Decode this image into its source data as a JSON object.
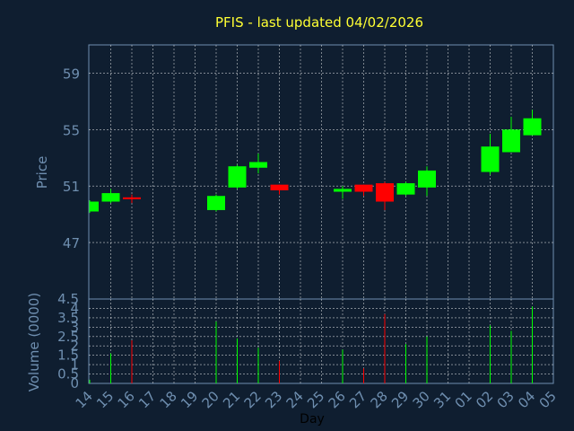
{
  "chart_data": {
    "type": "candlestick",
    "title": "PFIS - last updated 04/02/2026",
    "xlabel": "Day",
    "ylabel": "Price",
    "volume_label": "Volume (0000)",
    "categories": [
      "14",
      "15",
      "16",
      "17",
      "18",
      "19",
      "20",
      "21",
      "22",
      "23",
      "24",
      "25",
      "26",
      "27",
      "28",
      "29",
      "30",
      "31",
      "01",
      "02",
      "03",
      "04",
      "05"
    ],
    "price_ylim": [
      43,
      61
    ],
    "price_ticks": [
      "47",
      "51",
      "55",
      "59"
    ],
    "price_tick_values": [
      47,
      51,
      55,
      59
    ],
    "volume_ylim": [
      0,
      4.5
    ],
    "volume_ticks": [
      "0",
      "0.5",
      "1",
      "1.5",
      "2",
      "2.5",
      "3",
      "3.5",
      "4",
      "4.5"
    ],
    "volume_tick_values": [
      0,
      0.5,
      1,
      1.5,
      2,
      2.5,
      3,
      3.5,
      4,
      4.5
    ],
    "grid": true,
    "colors": {
      "up": "#00ff00",
      "down": "#ff0000",
      "grid": "#ffffff",
      "axis": "#6f8fb0",
      "title": "#ffff33",
      "background": "#0f1e30"
    },
    "candles": [
      {
        "x": "14",
        "open": 49.2,
        "close": 49.9,
        "high": 50.0,
        "low": 49.1,
        "volume": 0.2
      },
      {
        "x": "15",
        "open": 49.9,
        "close": 50.5,
        "high": 50.8,
        "low": 49.8,
        "volume": 1.6
      },
      {
        "x": "16",
        "open": 50.2,
        "close": 50.1,
        "high": 50.4,
        "low": 49.8,
        "volume": 2.3
      },
      {
        "x": "20",
        "open": 49.3,
        "close": 50.3,
        "high": 50.4,
        "low": 49.2,
        "volume": 3.3
      },
      {
        "x": "21",
        "open": 50.9,
        "close": 52.4,
        "high": 52.5,
        "low": 50.8,
        "volume": 2.4
      },
      {
        "x": "22",
        "open": 52.3,
        "close": 52.7,
        "high": 53.3,
        "low": 51.9,
        "volume": 1.9
      },
      {
        "x": "23",
        "open": 51.1,
        "close": 50.7,
        "high": 51.1,
        "low": 50.4,
        "volume": 1.2
      },
      {
        "x": "26",
        "open": 50.6,
        "close": 50.8,
        "high": 51.0,
        "low": 50.1,
        "volume": 1.8
      },
      {
        "x": "27",
        "open": 51.1,
        "close": 50.6,
        "high": 51.1,
        "low": 50.3,
        "volume": 0.8
      },
      {
        "x": "28",
        "open": 51.2,
        "close": 49.9,
        "high": 51.3,
        "low": 49.3,
        "volume": 3.7
      },
      {
        "x": "29",
        "open": 50.4,
        "close": 51.2,
        "high": 51.3,
        "low": 50.3,
        "volume": 2.1
      },
      {
        "x": "30",
        "open": 50.9,
        "close": 52.1,
        "high": 52.4,
        "low": 50.3,
        "volume": 2.5
      },
      {
        "x": "02",
        "open": 52.0,
        "close": 53.8,
        "high": 54.7,
        "low": 51.8,
        "volume": 3.1
      },
      {
        "x": "03",
        "open": 53.4,
        "close": 55.0,
        "high": 55.9,
        "low": 53.4,
        "volume": 2.8
      },
      {
        "x": "04",
        "open": 54.6,
        "close": 55.8,
        "high": 56.4,
        "low": 54.6,
        "volume": 4.1
      }
    ]
  }
}
